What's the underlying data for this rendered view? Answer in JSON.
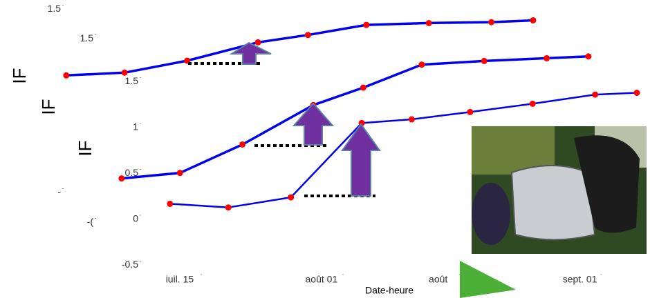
{
  "chart_data": [
    {
      "type": "line",
      "y_label": "IF",
      "x": [
        194,
        201,
        208.5,
        217,
        223,
        230,
        237.5,
        245,
        250
      ],
      "xlim": [
        190,
        251
      ],
      "ylim": [
        -0.6,
        1.6
      ],
      "yticks": [
        1.5,
        {
          "value": -0.5,
          "label": "-"
        }
      ],
      "marker_color": "#ff0000",
      "series": [
        {
          "color": "#0000ee",
          "values": [
            0.78,
            0.81,
            0.94,
            1.14,
            1.22,
            1.33,
            1.35,
            1.36,
            1.38
          ]
        }
      ]
    },
    {
      "type": "line",
      "y_label": "IF",
      "x": [
        194,
        201,
        208.5,
        217,
        223,
        230,
        237.5,
        245,
        250
      ],
      "xlim": [
        190,
        251
      ],
      "ylim": [
        -0.6,
        1.6
      ],
      "yticks": [
        1.5,
        {
          "value": -0.5,
          "label": "-("
        }
      ],
      "marker_color": "#ff0000",
      "series": [
        {
          "color": "#0000ee",
          "values": [
            -0.02,
            0.04,
            0.35,
            0.78,
            0.97,
            1.22,
            1.26,
            1.29,
            1.31
          ]
        }
      ]
    },
    {
      "type": "line",
      "y_label": "IF",
      "x_label": "Date-heure",
      "x": [
        194,
        201,
        208.5,
        217,
        223,
        230,
        237.5,
        245,
        250
      ],
      "xlim": [
        190,
        251
      ],
      "ylim": [
        -0.6,
        1.6
      ],
      "xticks": [
        {
          "value": 196,
          "label": "iuil. 15"
        },
        {
          "value": 213,
          "label": "août 01"
        },
        {
          "value": 227,
          "label": "août"
        },
        {
          "value": 244,
          "label": "sept. 01"
        }
      ],
      "yticks": [
        -0.5,
        0.0,
        0.5,
        1.0,
        1.5
      ],
      "marker_color": "#ff0000",
      "series": [
        {
          "color": "#0000ee",
          "values": [
            0.17,
            0.13,
            0.24,
            1.05,
            1.09,
            1.17,
            1.26,
            1.36,
            1.38
          ]
        }
      ]
    }
  ]
}
